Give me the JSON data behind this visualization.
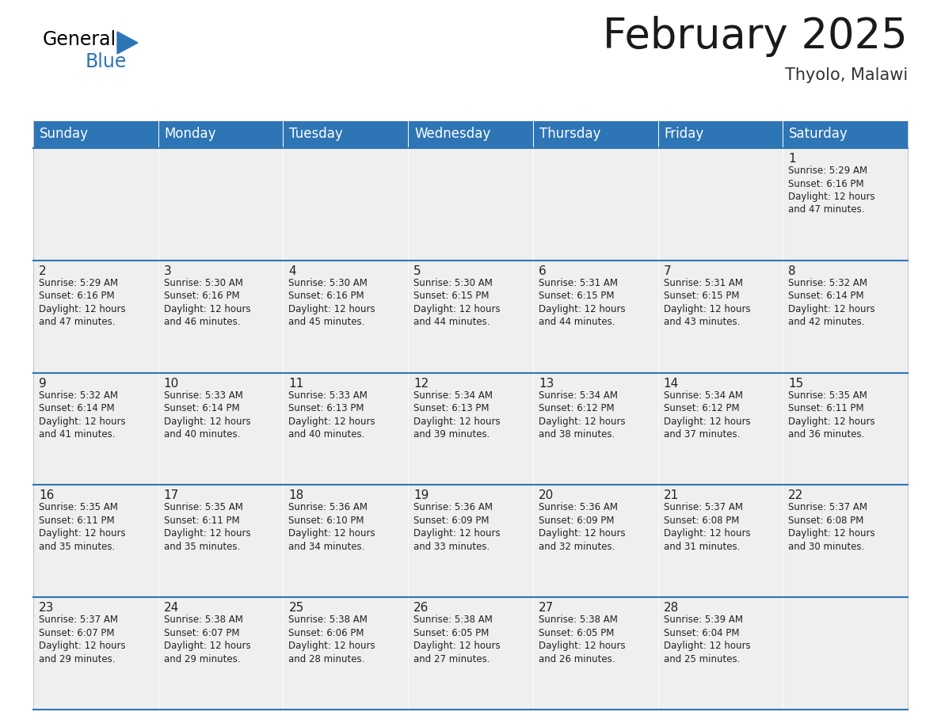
{
  "title": "February 2025",
  "subtitle": "Thyolo, Malawi",
  "header_color": "#2E75B6",
  "header_text_color": "#FFFFFF",
  "cell_bg_color": "#EFEFEF",
  "cell_bg_white": "#FFFFFF",
  "cell_text_color": "#222222",
  "border_color": "#2E75B6",
  "grid_color": "#BBBBBB",
  "days_of_week": [
    "Sunday",
    "Monday",
    "Tuesday",
    "Wednesday",
    "Thursday",
    "Friday",
    "Saturday"
  ],
  "calendar_data": [
    [
      null,
      null,
      null,
      null,
      null,
      null,
      {
        "day": 1,
        "sunrise": "5:29 AM",
        "sunset": "6:16 PM",
        "daylight": "12 hours\nand 47 minutes."
      }
    ],
    [
      {
        "day": 2,
        "sunrise": "5:29 AM",
        "sunset": "6:16 PM",
        "daylight": "12 hours\nand 47 minutes."
      },
      {
        "day": 3,
        "sunrise": "5:30 AM",
        "sunset": "6:16 PM",
        "daylight": "12 hours\nand 46 minutes."
      },
      {
        "day": 4,
        "sunrise": "5:30 AM",
        "sunset": "6:16 PM",
        "daylight": "12 hours\nand 45 minutes."
      },
      {
        "day": 5,
        "sunrise": "5:30 AM",
        "sunset": "6:15 PM",
        "daylight": "12 hours\nand 44 minutes."
      },
      {
        "day": 6,
        "sunrise": "5:31 AM",
        "sunset": "6:15 PM",
        "daylight": "12 hours\nand 44 minutes."
      },
      {
        "day": 7,
        "sunrise": "5:31 AM",
        "sunset": "6:15 PM",
        "daylight": "12 hours\nand 43 minutes."
      },
      {
        "day": 8,
        "sunrise": "5:32 AM",
        "sunset": "6:14 PM",
        "daylight": "12 hours\nand 42 minutes."
      }
    ],
    [
      {
        "day": 9,
        "sunrise": "5:32 AM",
        "sunset": "6:14 PM",
        "daylight": "12 hours\nand 41 minutes."
      },
      {
        "day": 10,
        "sunrise": "5:33 AM",
        "sunset": "6:14 PM",
        "daylight": "12 hours\nand 40 minutes."
      },
      {
        "day": 11,
        "sunrise": "5:33 AM",
        "sunset": "6:13 PM",
        "daylight": "12 hours\nand 40 minutes."
      },
      {
        "day": 12,
        "sunrise": "5:34 AM",
        "sunset": "6:13 PM",
        "daylight": "12 hours\nand 39 minutes."
      },
      {
        "day": 13,
        "sunrise": "5:34 AM",
        "sunset": "6:12 PM",
        "daylight": "12 hours\nand 38 minutes."
      },
      {
        "day": 14,
        "sunrise": "5:34 AM",
        "sunset": "6:12 PM",
        "daylight": "12 hours\nand 37 minutes."
      },
      {
        "day": 15,
        "sunrise": "5:35 AM",
        "sunset": "6:11 PM",
        "daylight": "12 hours\nand 36 minutes."
      }
    ],
    [
      {
        "day": 16,
        "sunrise": "5:35 AM",
        "sunset": "6:11 PM",
        "daylight": "12 hours\nand 35 minutes."
      },
      {
        "day": 17,
        "sunrise": "5:35 AM",
        "sunset": "6:11 PM",
        "daylight": "12 hours\nand 35 minutes."
      },
      {
        "day": 18,
        "sunrise": "5:36 AM",
        "sunset": "6:10 PM",
        "daylight": "12 hours\nand 34 minutes."
      },
      {
        "day": 19,
        "sunrise": "5:36 AM",
        "sunset": "6:09 PM",
        "daylight": "12 hours\nand 33 minutes."
      },
      {
        "day": 20,
        "sunrise": "5:36 AM",
        "sunset": "6:09 PM",
        "daylight": "12 hours\nand 32 minutes."
      },
      {
        "day": 21,
        "sunrise": "5:37 AM",
        "sunset": "6:08 PM",
        "daylight": "12 hours\nand 31 minutes."
      },
      {
        "day": 22,
        "sunrise": "5:37 AM",
        "sunset": "6:08 PM",
        "daylight": "12 hours\nand 30 minutes."
      }
    ],
    [
      {
        "day": 23,
        "sunrise": "5:37 AM",
        "sunset": "6:07 PM",
        "daylight": "12 hours\nand 29 minutes."
      },
      {
        "day": 24,
        "sunrise": "5:38 AM",
        "sunset": "6:07 PM",
        "daylight": "12 hours\nand 29 minutes."
      },
      {
        "day": 25,
        "sunrise": "5:38 AM",
        "sunset": "6:06 PM",
        "daylight": "12 hours\nand 28 minutes."
      },
      {
        "day": 26,
        "sunrise": "5:38 AM",
        "sunset": "6:05 PM",
        "daylight": "12 hours\nand 27 minutes."
      },
      {
        "day": 27,
        "sunrise": "5:38 AM",
        "sunset": "6:05 PM",
        "daylight": "12 hours\nand 26 minutes."
      },
      {
        "day": 28,
        "sunrise": "5:39 AM",
        "sunset": "6:04 PM",
        "daylight": "12 hours\nand 25 minutes."
      },
      null
    ]
  ],
  "logo_triangle_color": "#2E75B6",
  "title_fontsize": 38,
  "subtitle_fontsize": 15,
  "day_header_fontsize": 12,
  "day_number_fontsize": 11,
  "cell_text_fontsize": 8.5
}
